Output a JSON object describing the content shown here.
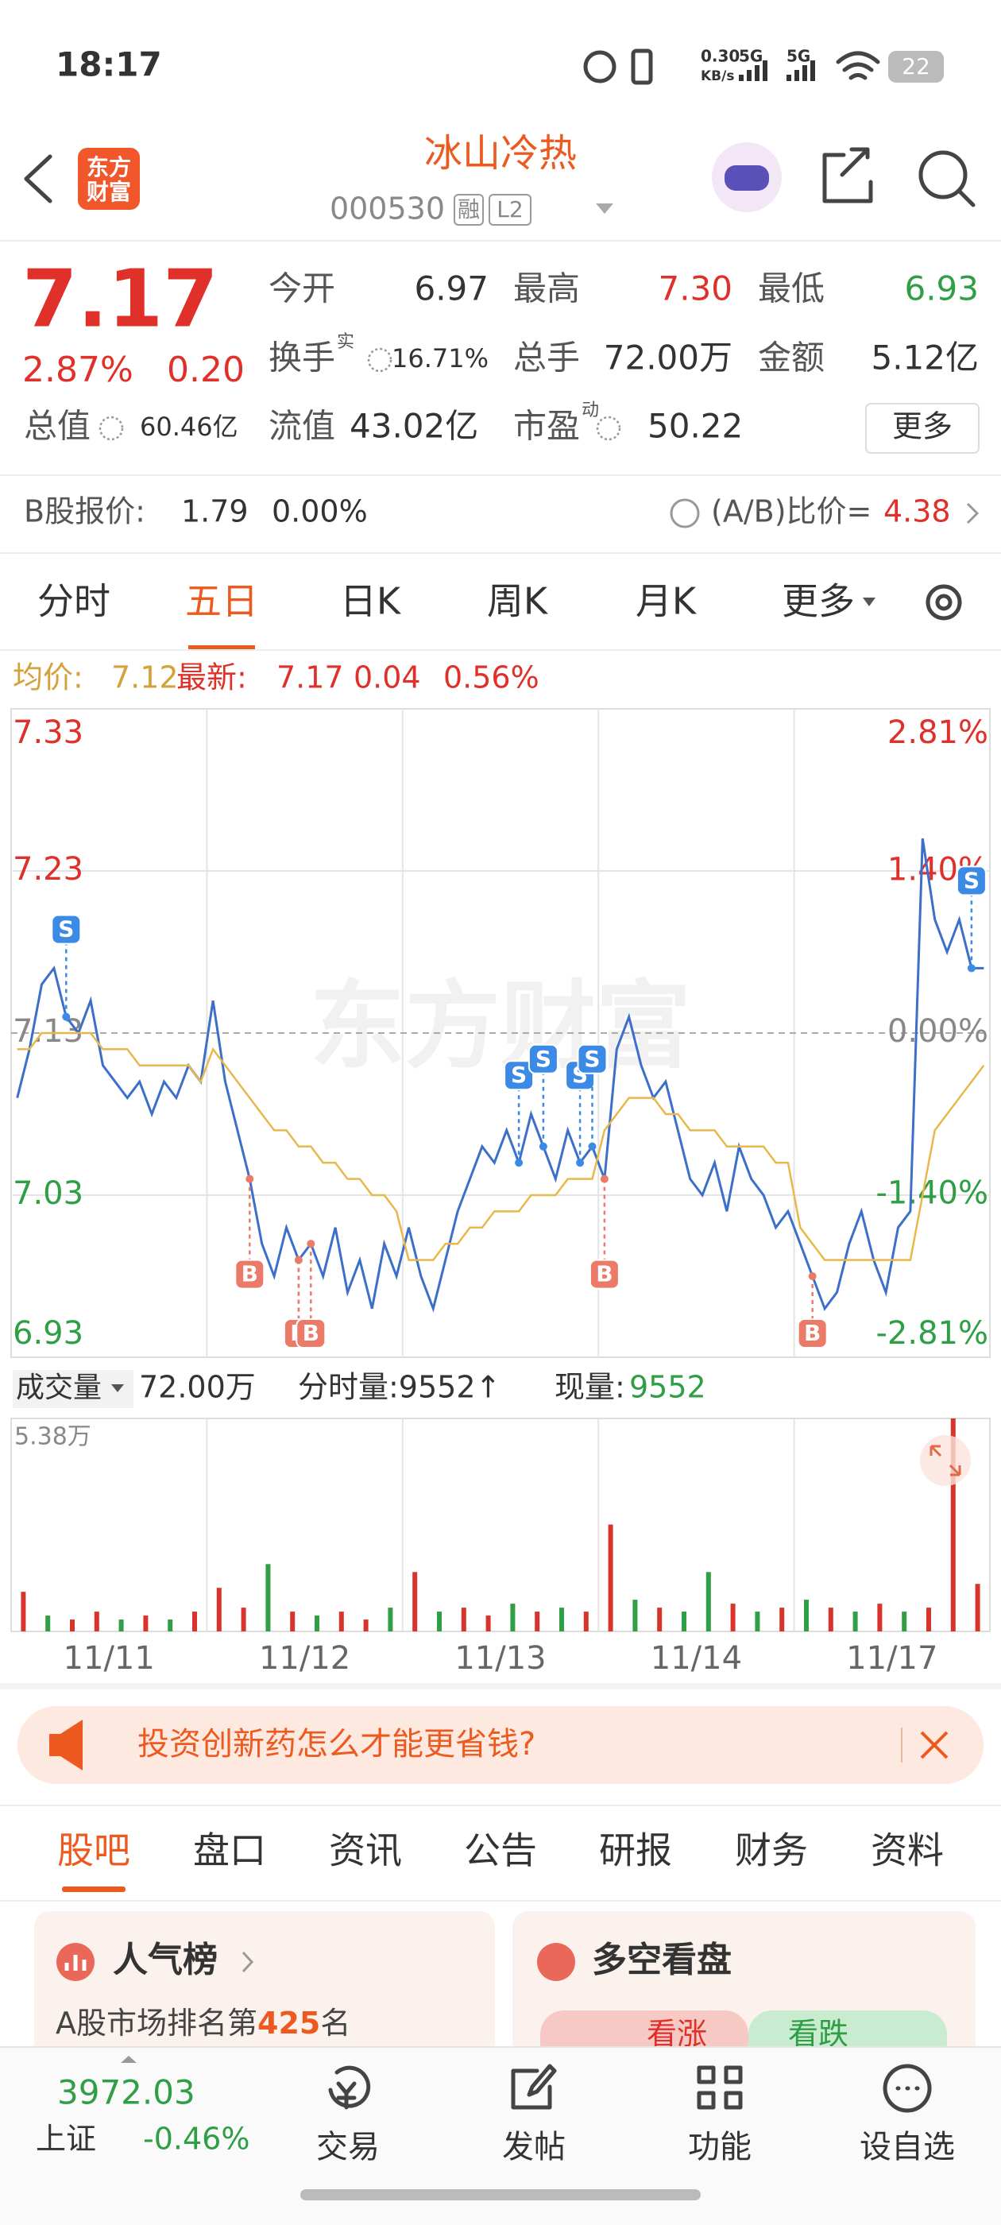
{
  "status_bar": {
    "time": "18:17",
    "net_speed": "0.30",
    "net_unit": "KB/s",
    "signal1": "5G",
    "signal2": "5G",
    "battery": "22"
  },
  "header": {
    "logo_line1": "东方",
    "logo_line2": "财富",
    "title": "冰山冷热",
    "code": "000530",
    "tag1": "融",
    "tag2": "L2"
  },
  "quote": {
    "price": "7.17",
    "change_pct": "2.87%",
    "change": "0.20",
    "fields": [
      {
        "label": "今开",
        "value": "6.97"
      },
      {
        "label": "最高",
        "value": "7.30",
        "color": "#e0302a"
      },
      {
        "label": "最低",
        "value": "6.93",
        "color": "#2f9e44"
      },
      {
        "label": "换手",
        "sup": "实",
        "value": "16.71%"
      },
      {
        "label": "总手",
        "value": "72.00万"
      },
      {
        "label": "金额",
        "value": "5.12亿"
      },
      {
        "label": "总值",
        "value": "60.46亿"
      },
      {
        "label": "流值",
        "value": "43.02亿"
      },
      {
        "label": "市盈",
        "sup": "动",
        "value": "50.22"
      }
    ],
    "more": "更多"
  },
  "b_share": {
    "label": "B股报价:",
    "price": "1.79",
    "pct": "0.00%",
    "ratio_label": "(A/B)比价=",
    "ratio": "4.38"
  },
  "chart_tabs": [
    "分时",
    "五日",
    "日K",
    "周K",
    "月K",
    "更多"
  ],
  "active_chart_tab": 1,
  "info_line": {
    "avg_label": "均价:",
    "avg": "7.12",
    "latest_label": "最新:",
    "latest": "7.17",
    "change": "0.04",
    "pct": "0.56%"
  },
  "chart_data": [
    {
      "type": "line",
      "watermark": "东方财富",
      "ylim": [
        6.93,
        7.33
      ],
      "yticks": [
        7.33,
        7.23,
        7.13,
        7.03,
        6.93
      ],
      "y2lim": [
        -2.81,
        2.81
      ],
      "y2ticks": [
        {
          "value": 2.81,
          "label": "2.81%"
        },
        {
          "value": 1.4,
          "label": "1.40%"
        },
        {
          "value": 0,
          "label": "0.00%"
        },
        {
          "value": -1.4,
          "label": "-1.40%"
        },
        {
          "value": -2.81,
          "label": "-2.81%"
        }
      ],
      "grid": true,
      "series": [
        {
          "color": "#3b6fc9",
          "values": [
            7.09,
            7.12,
            7.16,
            7.17,
            7.14,
            7.13,
            7.15,
            7.11,
            7.1,
            7.09,
            7.1,
            7.08,
            7.1,
            7.09,
            7.11,
            7.1,
            7.15,
            7.1,
            7.07,
            7.04,
            7.0,
            6.98,
            7.01,
            6.99,
            7.0,
            6.98,
            7.01,
            6.97,
            6.99,
            6.96,
            7.0,
            6.98,
            7.01,
            6.98,
            6.96,
            6.99,
            7.02,
            7.04,
            7.06,
            7.05,
            7.07,
            7.05,
            7.08,
            7.06,
            7.04,
            7.07,
            7.05,
            7.06,
            7.04,
            7.12,
            7.14,
            7.11,
            7.09,
            7.1,
            7.07,
            7.04,
            7.03,
            7.05,
            7.02,
            7.06,
            7.04,
            7.03,
            7.01,
            7.02,
            7.0,
            6.98,
            6.96,
            6.97,
            7.0,
            7.02,
            6.99,
            6.97,
            7.01,
            7.02,
            7.25,
            7.2,
            7.18,
            7.2,
            7.17,
            7.17
          ]
        },
        {
          "color": "#e8b84a",
          "values": [
            7.12,
            7.12,
            7.13,
            7.13,
            7.13,
            7.13,
            7.13,
            7.12,
            7.12,
            7.12,
            7.11,
            7.11,
            7.11,
            7.11,
            7.11,
            7.1,
            7.12,
            7.11,
            7.1,
            7.09,
            7.08,
            7.07,
            7.07,
            7.06,
            7.06,
            7.05,
            7.05,
            7.04,
            7.04,
            7.03,
            7.03,
            7.02,
            6.99,
            6.99,
            6.99,
            7.0,
            7.0,
            7.01,
            7.01,
            7.02,
            7.02,
            7.02,
            7.03,
            7.03,
            7.03,
            7.04,
            7.04,
            7.04,
            7.07,
            7.08,
            7.09,
            7.09,
            7.09,
            7.08,
            7.08,
            7.07,
            7.07,
            7.07,
            7.06,
            7.06,
            7.06,
            7.06,
            7.05,
            7.05,
            7.01,
            7.0,
            6.99,
            6.99,
            6.99,
            6.99,
            6.99,
            6.99,
            6.99,
            6.99,
            7.03,
            7.07,
            7.08,
            7.09,
            7.1,
            7.11
          ]
        }
      ],
      "markers": [
        {
          "label": "S",
          "index": 4
        },
        {
          "label": "B",
          "index": 19
        },
        {
          "label": "B",
          "index": 23
        },
        {
          "label": "B",
          "index": 23
        },
        {
          "label": "B",
          "index": 24
        },
        {
          "label": "S",
          "index": 41
        },
        {
          "label": "S",
          "index": 43
        },
        {
          "label": "S",
          "index": 46
        },
        {
          "label": "S",
          "index": 47
        },
        {
          "label": "B",
          "index": 48
        },
        {
          "label": "B",
          "index": 65
        },
        {
          "label": "S",
          "index": 78
        }
      ]
    },
    {
      "type": "bar",
      "x_labels": [
        "11/11",
        "11/12",
        "11/13",
        "11/14",
        "11/17"
      ],
      "ylim": [
        0,
        5.38
      ],
      "yticks": [
        {
          "value": 5.38,
          "label": "5.38万"
        }
      ],
      "values": [
        1.0,
        0.4,
        0.3,
        0.5,
        0.3,
        0.4,
        0.3,
        0.5,
        1.1,
        0.6,
        1.7,
        0.5,
        0.4,
        0.5,
        0.3,
        0.6,
        1.5,
        0.5,
        0.6,
        0.4,
        0.7,
        0.5,
        0.6,
        0.5,
        2.7,
        0.8,
        0.6,
        0.5,
        1.5,
        0.7,
        0.5,
        0.6,
        0.8,
        0.6,
        0.5,
        0.7,
        0.5,
        0.6,
        5.38,
        1.2
      ],
      "colors": [
        "#d9342b",
        "#2f9e44",
        "#d9342b",
        "#d9342b",
        "#2f9e44",
        "#d9342b",
        "#2f9e44",
        "#d9342b",
        "#d9342b",
        "#d9342b",
        "#2f9e44",
        "#d9342b",
        "#2f9e44",
        "#d9342b",
        "#d9342b",
        "#2f9e44",
        "#d9342b",
        "#2f9e44",
        "#d9342b",
        "#d9342b",
        "#2f9e44",
        "#d9342b",
        "#2f9e44",
        "#d9342b",
        "#d9342b",
        "#2f9e44",
        "#d9342b",
        "#2f9e44",
        "#2f9e44",
        "#d9342b",
        "#2f9e44",
        "#d9342b",
        "#2f9e44",
        "#d9342b",
        "#2f9e44",
        "#d9342b",
        "#2f9e44",
        "#d9342b",
        "#d9342b",
        "#d9342b"
      ]
    }
  ],
  "volume_info": {
    "label": "成交量",
    "total": "72.00万",
    "tick_label": "分时量:9552↑",
    "current_label": "现量:",
    "current": "9552"
  },
  "banner": {
    "text": "投资创新药怎么才能更省钱?"
  },
  "section_tabs": [
    "股吧",
    "盘口",
    "资讯",
    "公告",
    "研报",
    "财务",
    "资料"
  ],
  "active_section_tab": 0,
  "cards": [
    {
      "title": "人气榜",
      "text_prefix": "A股市场排名第",
      "rank": "425",
      "text_suffix": "名"
    },
    {
      "title": "多空看盘",
      "bull": "看涨",
      "bear": "看跌"
    }
  ],
  "bottom_nav": {
    "index_value": "3972.03",
    "index_name": "上证",
    "index_pct": "-0.46%",
    "items": [
      "交易",
      "发帖",
      "功能",
      "设自选"
    ]
  }
}
